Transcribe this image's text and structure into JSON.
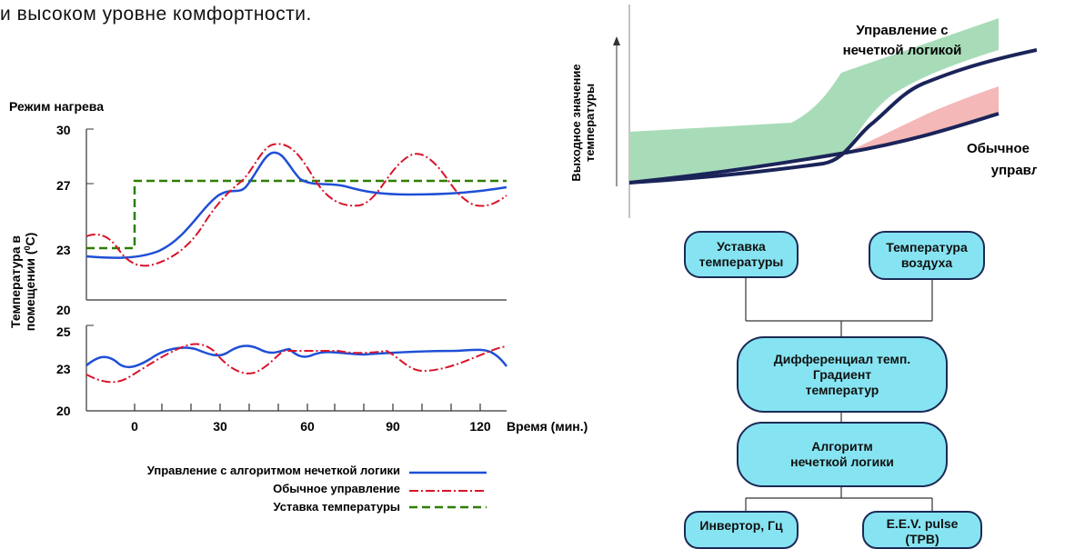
{
  "intro_text": "и высоком уровне комфортности.",
  "heating_chart": {
    "title": "Режим нагрева",
    "ylabel_line1": "Температура в",
    "ylabel_line2": "помещении (",
    "ylabel_sup": "0",
    "ylabel_end": "C)",
    "xlabel": "Время (мин.)",
    "upper_ticks": [
      "30",
      "27",
      "23",
      "20"
    ],
    "lower_ticks": [
      "25",
      "23",
      "20"
    ],
    "x_ticks": [
      "0",
      "30",
      "60",
      "90",
      "120"
    ],
    "colors": {
      "fuzzy": "#1f4fd6",
      "conventional": "#d9142b",
      "setpoint": "#2e7d00"
    }
  },
  "legend": {
    "fuzzy": "Управление  с алгоритмом нечеткой  логики",
    "conventional": "Обычное управление",
    "setpoint": "Уставка температуры"
  },
  "output_chart": {
    "ylabel_line1": "Выходное значение",
    "ylabel_line2": "температуры",
    "fuzzy_label_line1": "Управление с",
    "fuzzy_label_line2": "нечеткой логикой",
    "conv_label_line1": "Обычное",
    "conv_label_line2": "управление",
    "colors": {
      "green_fill": "#a8dcb8",
      "pink_fill": "#f4b8b8",
      "line": "#1b2459"
    }
  },
  "flow": {
    "setpoint": "Уставка\nтемпературы",
    "air_temp": "Температура\nвоздуха",
    "differential": "Дифференциал темп.\nГрадиент\nтемператур",
    "algorithm": "Алгоритм\nнечеткой логики",
    "inverter": "Инвертор, Гц",
    "eev": "E.E.V. pulse\n(ТРВ)"
  }
}
